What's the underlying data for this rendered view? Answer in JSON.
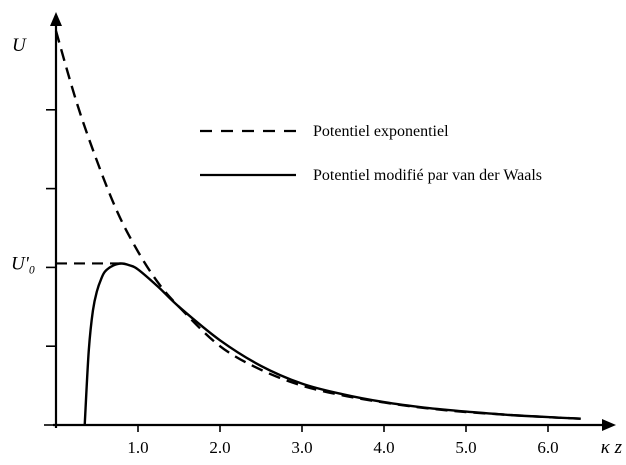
{
  "chart_data": {
    "type": "line",
    "xlabel": "κ z",
    "ylabel": "U",
    "y_marker_label": "U'₀",
    "y_marker_value": 0.41,
    "xlim": [
      0,
      6.5
    ],
    "ylim": [
      0,
      1.0
    ],
    "x_ticks": [
      "1.0",
      "2.0",
      "3.0",
      "4.0",
      "5.0",
      "6.0"
    ],
    "x_tick_values": [
      1,
      2,
      3,
      4,
      5,
      6
    ],
    "y_tick_values": [
      0.2,
      0.4,
      0.6,
      0.8
    ],
    "grid": false,
    "legend_position": "upper-right",
    "series": [
      {
        "name": "Potentiel exponentiel",
        "style": "dashed",
        "x": [
          0.0,
          0.25,
          0.5,
          0.75,
          1.0,
          1.25,
          1.5,
          2.0,
          2.5,
          3.0,
          3.5,
          4.0,
          4.5,
          5.0,
          5.5,
          6.0,
          6.4
        ],
        "y": [
          1.0,
          0.82,
          0.67,
          0.54,
          0.44,
          0.36,
          0.3,
          0.2,
          0.14,
          0.1,
          0.075,
          0.057,
          0.043,
          0.033,
          0.026,
          0.02,
          0.016
        ]
      },
      {
        "name": "Potentiel modifié par van der Waals",
        "style": "solid",
        "x": [
          0.35,
          0.4,
          0.45,
          0.5,
          0.55,
          0.6,
          0.7,
          0.8,
          0.9,
          1.0,
          1.25,
          1.5,
          2.0,
          2.5,
          3.0,
          3.5,
          4.0,
          4.5,
          5.0,
          5.5,
          6.0,
          6.4
        ],
        "y": [
          0.0,
          0.19,
          0.29,
          0.34,
          0.37,
          0.39,
          0.405,
          0.41,
          0.405,
          0.395,
          0.35,
          0.3,
          0.215,
          0.15,
          0.105,
          0.078,
          0.058,
          0.044,
          0.034,
          0.026,
          0.02,
          0.016
        ]
      }
    ]
  }
}
